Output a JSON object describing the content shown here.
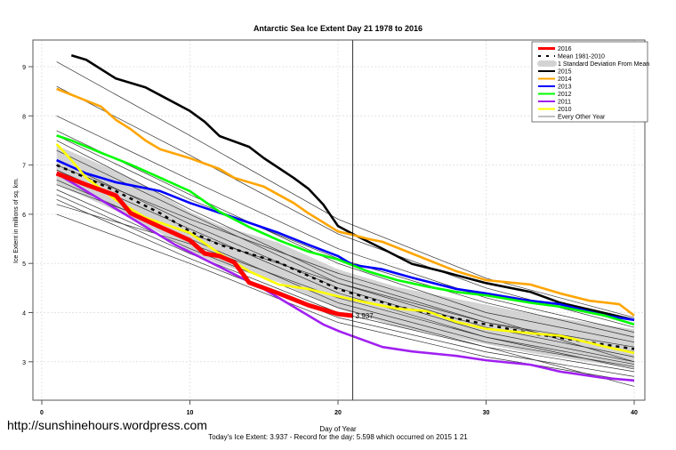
{
  "chart_data": {
    "type": "line",
    "title": "Antarctic Sea Ice Extent Day 21 1978 to 2016",
    "xlabel": "Day of Year",
    "ylabel": "Ice Extent in millions of sq. km.",
    "footnote": "Today's Ice Extent: 3.937  - Record for the day: 5.598 which occurred on 2015 1 21",
    "watermark": "http://sunshinehours.wordpress.com",
    "xlim": [
      0,
      40
    ],
    "ylim": [
      2.6,
      9.5
    ],
    "xticks": [
      0,
      10,
      20,
      30,
      40
    ],
    "yticks": [
      3,
      4,
      5,
      6,
      7,
      8,
      9
    ],
    "vline_day": 21,
    "today_label": "3.937",
    "legend_position": "top-right",
    "legend": [
      {
        "label": "2016",
        "color": "#ff0000",
        "style": "thick"
      },
      {
        "label": "Mean 1981-2010",
        "color": "#000000",
        "style": "dashed"
      },
      {
        "label": "1 Standard Deviation From Mean",
        "color": "#d3d3d3",
        "style": "band"
      },
      {
        "label": "2015",
        "color": "#000000",
        "style": "solid"
      },
      {
        "label": "2014",
        "color": "#ffa500",
        "style": "solid"
      },
      {
        "label": "2013",
        "color": "#0000ff",
        "style": "solid"
      },
      {
        "label": "2012",
        "color": "#00ff00",
        "style": "solid"
      },
      {
        "label": "2011",
        "color": "#a020f0",
        "style": "solid"
      },
      {
        "label": "2010",
        "color": "#ffff00",
        "style": "solid"
      },
      {
        "label": "Every Other Year",
        "color": "#555555",
        "style": "thin"
      }
    ],
    "sd_halfwidth": 0.4,
    "mean": {
      "days": [
        1,
        3,
        5,
        8,
        10,
        12,
        14,
        16,
        18,
        20,
        21,
        24,
        27,
        30,
        33,
        36,
        40
      ],
      "values": [
        7.0,
        6.74,
        6.47,
        6.02,
        5.65,
        5.38,
        5.2,
        5.02,
        4.75,
        4.48,
        4.39,
        4.12,
        3.94,
        3.76,
        3.58,
        3.44,
        3.26
      ]
    },
    "series": [
      {
        "name": "2015",
        "color": "#000000",
        "days": [
          2,
          3,
          5,
          7,
          8,
          10,
          11,
          12,
          14,
          15,
          17,
          18,
          19,
          20,
          21,
          23,
          25,
          27,
          30,
          33,
          35,
          37,
          40
        ],
        "values": [
          9.23,
          9.14,
          8.76,
          8.58,
          8.42,
          8.1,
          7.88,
          7.59,
          7.37,
          7.14,
          6.74,
          6.52,
          6.2,
          5.76,
          5.598,
          5.3,
          4.99,
          4.84,
          4.6,
          4.42,
          4.2,
          4.06,
          3.85
        ]
      },
      {
        "name": "2014",
        "color": "#ffa500",
        "days": [
          1,
          3,
          4,
          5,
          6,
          7,
          8,
          10,
          12,
          13,
          15,
          17,
          18,
          20,
          21,
          22,
          23,
          25,
          28,
          30,
          33,
          35,
          37,
          39,
          40
        ],
        "values": [
          8.55,
          8.31,
          8.19,
          7.92,
          7.73,
          7.5,
          7.32,
          7.14,
          6.92,
          6.74,
          6.56,
          6.23,
          6.02,
          5.65,
          5.58,
          5.5,
          5.44,
          5.2,
          4.84,
          4.66,
          4.57,
          4.39,
          4.24,
          4.17,
          3.94
        ]
      },
      {
        "name": "2013",
        "color": "#0000ff",
        "days": [
          1,
          3,
          5,
          8,
          10,
          13,
          16,
          18,
          20,
          21,
          23,
          25,
          28,
          30,
          33,
          35,
          38,
          40
        ],
        "values": [
          7.1,
          6.83,
          6.65,
          6.47,
          6.23,
          5.93,
          5.62,
          5.38,
          5.15,
          4.97,
          4.88,
          4.71,
          4.48,
          4.39,
          4.24,
          4.17,
          3.94,
          3.85
        ]
      },
      {
        "name": "2012",
        "color": "#00ff00",
        "days": [
          1,
          2,
          4,
          6,
          8,
          10,
          12,
          14,
          16,
          18,
          20,
          22,
          24,
          26,
          28,
          30,
          33,
          35,
          38,
          40
        ],
        "values": [
          7.6,
          7.5,
          7.25,
          7.01,
          6.74,
          6.47,
          6.05,
          5.74,
          5.47,
          5.24,
          5.08,
          4.84,
          4.66,
          4.53,
          4.42,
          4.35,
          4.2,
          4.12,
          3.94,
          3.76
        ]
      },
      {
        "name": "2011",
        "color": "#a020f0",
        "days": [
          1,
          3,
          6,
          9,
          12,
          15,
          17,
          19,
          20,
          21,
          23,
          25,
          28,
          30,
          33,
          35,
          38,
          40
        ],
        "values": [
          6.83,
          6.47,
          5.93,
          5.38,
          4.93,
          4.48,
          4.12,
          3.76,
          3.63,
          3.52,
          3.3,
          3.21,
          3.12,
          3.03,
          2.94,
          2.8,
          2.67,
          2.62
        ]
      },
      {
        "name": "2010",
        "color": "#ffff00",
        "days": [
          1,
          2,
          3,
          5,
          7,
          10,
          12,
          14,
          16,
          18,
          20,
          22,
          24,
          26,
          28,
          30,
          33,
          35,
          38,
          40
        ],
        "values": [
          7.43,
          7.1,
          6.74,
          6.29,
          5.93,
          5.62,
          5.2,
          4.84,
          4.57,
          4.48,
          4.33,
          4.2,
          4.08,
          4.03,
          3.81,
          3.67,
          3.58,
          3.53,
          3.31,
          3.18
        ]
      },
      {
        "name": "2016",
        "color": "#ff0000",
        "days": [
          1,
          3,
          5,
          6,
          8,
          10,
          11,
          12,
          13,
          14,
          16,
          18,
          20,
          21
        ],
        "values": [
          6.83,
          6.6,
          6.38,
          6.02,
          5.74,
          5.47,
          5.2,
          5.15,
          5.02,
          4.61,
          4.39,
          4.15,
          3.97,
          3.937
        ]
      }
    ],
    "other_years": {
      "days": [
        1,
        10,
        20,
        30,
        40
      ],
      "values": [
        [
          9.1,
          7.6,
          5.9,
          4.7,
          3.9
        ],
        [
          8.0,
          6.7,
          5.3,
          4.3,
          3.6
        ],
        [
          7.7,
          6.4,
          5.0,
          4.0,
          3.4
        ],
        [
          7.5,
          6.1,
          4.7,
          3.8,
          3.2
        ],
        [
          7.3,
          6.0,
          4.6,
          3.7,
          3.1
        ],
        [
          7.1,
          5.8,
          4.5,
          3.6,
          3.0
        ],
        [
          6.9,
          5.7,
          4.4,
          3.5,
          2.95
        ],
        [
          6.7,
          5.5,
          4.2,
          3.4,
          2.9
        ],
        [
          6.5,
          5.3,
          4.1,
          3.3,
          2.8
        ],
        [
          6.3,
          5.1,
          3.9,
          3.2,
          2.7
        ],
        [
          6.0,
          5.0,
          3.8,
          3.1,
          2.6
        ],
        [
          7.6,
          6.3,
          5.1,
          4.2,
          3.5
        ],
        [
          6.6,
          5.6,
          4.6,
          3.8,
          3.3
        ],
        [
          7.0,
          5.9,
          4.8,
          3.9,
          3.0
        ],
        [
          6.2,
          5.4,
          4.3,
          3.5,
          2.85
        ],
        [
          8.6,
          7.2,
          5.6,
          4.5,
          3.7
        ],
        [
          6.4,
          5.2,
          4.0,
          3.3,
          2.5
        ]
      ]
    }
  }
}
